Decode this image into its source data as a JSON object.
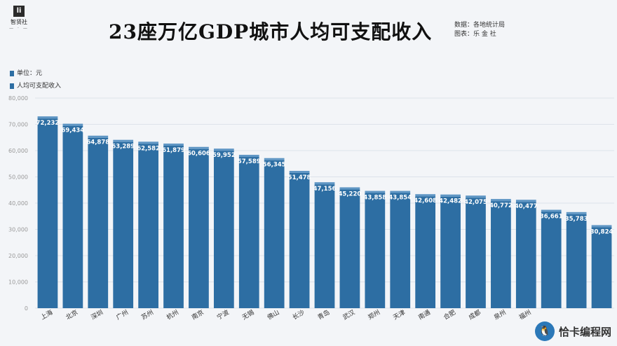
{
  "logo": {
    "mark": "li",
    "name": "智贤社",
    "dots": "— · —"
  },
  "title": "23座万亿GDP城市人均可支配收入",
  "meta": {
    "source": "数据：各地统计局",
    "author": "图表：乐 金 社"
  },
  "legend": {
    "unit": "单位：元",
    "series": "人均可支配收入"
  },
  "colors": {
    "bar": "#2d6ea3",
    "bar_cap": "#5f96c4",
    "grid": "#dde3ea",
    "axis_text": "#999999"
  },
  "watermark": {
    "text": "恰卡编程网",
    "icon": "penguin-icon"
  },
  "chart_data": {
    "type": "bar",
    "categories": [
      "上海",
      "北京",
      "深圳",
      "广州",
      "苏州",
      "杭州",
      "南京",
      "宁波",
      "无锡",
      "佛山",
      "长沙",
      "青岛",
      "武汉",
      "郑州",
      "天津",
      "南通",
      "合肥",
      "成都",
      "泉州",
      "福州",
      "",
      "",
      ""
    ],
    "values": [
      72232,
      69434,
      64878,
      63289,
      62582,
      61879,
      60606,
      59952,
      57589,
      56345,
      51478,
      47156,
      45220,
      43858,
      43854,
      42608,
      42482,
      42075,
      40772,
      40477,
      36661,
      35783,
      30824
    ],
    "data_labels": [
      "72,232",
      "69,434",
      "64,878",
      "63,289",
      "62,582",
      "61,879",
      "60,606",
      "59,952",
      "57,589",
      "56,345",
      "51,478",
      "47,156",
      "45,220",
      "43,858",
      "43,854",
      "42,608",
      "42,482",
      "42,075",
      "40,772",
      "40,477",
      "36,661",
      "35,783",
      "30,824"
    ],
    "y_ticks": [
      0,
      10000,
      20000,
      30000,
      40000,
      50000,
      60000,
      70000,
      80000
    ],
    "y_tick_labels": [
      "0",
      "10,000",
      "20,000",
      "30,000",
      "40,000",
      "50,000",
      "60,000",
      "70,000",
      "80,000"
    ],
    "ylim": [
      0,
      80000
    ],
    "grid": true
  }
}
